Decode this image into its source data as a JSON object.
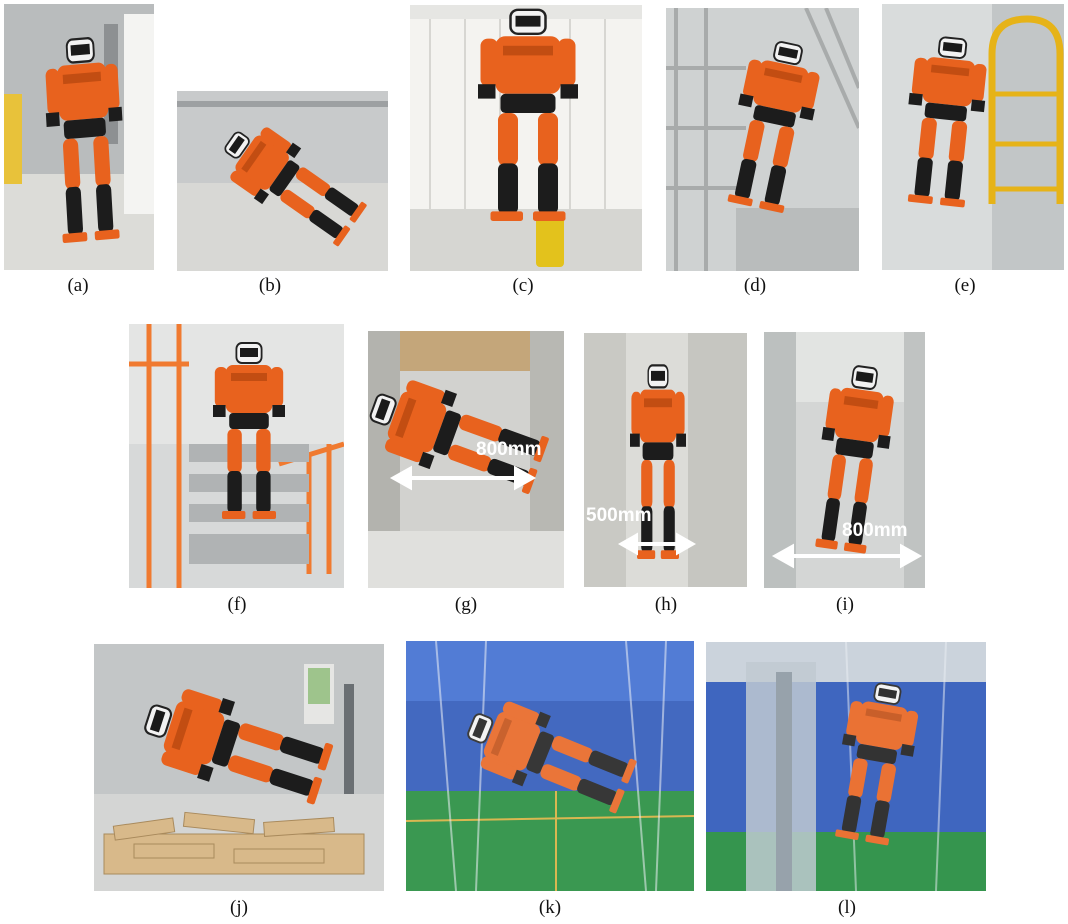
{
  "panels": [
    {
      "id": "a",
      "caption": "(a)"
    },
    {
      "id": "b",
      "caption": "(b)"
    },
    {
      "id": "c",
      "caption": "(c)"
    },
    {
      "id": "d",
      "caption": "(d)"
    },
    {
      "id": "e",
      "caption": "(e)"
    },
    {
      "id": "f",
      "caption": "(f)"
    },
    {
      "id": "g",
      "caption": "(g)",
      "measurement": "800mm"
    },
    {
      "id": "h",
      "caption": "(h)",
      "measurement": "500mm"
    },
    {
      "id": "i",
      "caption": "(i)",
      "measurement": "800mm"
    },
    {
      "id": "j",
      "caption": "(j)"
    },
    {
      "id": "k",
      "caption": "(k)"
    },
    {
      "id": "l",
      "caption": "(l)"
    }
  ],
  "colors": {
    "robot": "#e8621e",
    "robot_dark": "#1c1c1c",
    "floor": "#d9d9d6",
    "wall": "#e9e9e6",
    "water_blue": "#2a55b8",
    "turf": "#1f8a3a",
    "railing": "#f07a30"
  }
}
